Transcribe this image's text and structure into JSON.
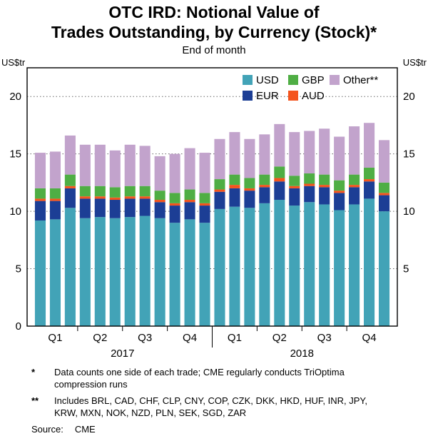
{
  "title_line1": "OTC IRD: Notional Value of",
  "title_line2": "Trades Outstanding, by Currency (Stock)*",
  "subtitle": "End of month",
  "y_unit_left": "US$tr",
  "y_unit_right": "US$tr",
  "footnotes": [
    {
      "marker": "*",
      "text": "Data counts one side of each trade; CME regularly conducts TriOptima compression runs"
    },
    {
      "marker": "**",
      "text": "Includes BRL, CAD, CHF, CLP, CNY, COP, CZK, DKK, HKD, HUF, INR, JPY, KRW, MXN, NOK, NZD, PLN, SEK, SGD, ZAR"
    }
  ],
  "source_label": "Source:",
  "source_value": "CME",
  "chart_data": {
    "type": "bar",
    "stacked": true,
    "title": "OTC IRD: Notional Value of Trades Outstanding, by Currency (Stock)*",
    "subtitle": "End of month",
    "ylabel": "US$tr",
    "ylim": [
      0,
      22.5
    ],
    "yticks": [
      0,
      5,
      10,
      15,
      20
    ],
    "grid": "dotted-horizontal",
    "legend_position": "top-right-inside",
    "legend_order": [
      "USD",
      "GBP",
      "Other**",
      "EUR",
      "AUD"
    ],
    "x_quarter_labels": [
      "Q1",
      "Q2",
      "Q3",
      "Q4",
      "Q1",
      "Q2",
      "Q3",
      "Q4"
    ],
    "x_year_labels": [
      "2017",
      "2018"
    ],
    "periods": [
      "2017-01",
      "2017-02",
      "2017-03",
      "2017-04",
      "2017-05",
      "2017-06",
      "2017-07",
      "2017-08",
      "2017-09",
      "2017-10",
      "2017-11",
      "2017-12",
      "2018-01",
      "2018-02",
      "2018-03",
      "2018-04",
      "2018-05",
      "2018-06",
      "2018-07",
      "2018-08",
      "2018-09",
      "2018-10",
      "2018-11",
      "2018-12"
    ],
    "series": [
      {
        "name": "USD",
        "color": "#42A3B7",
        "values": [
          9.2,
          9.3,
          10.3,
          9.4,
          9.5,
          9.4,
          9.5,
          9.6,
          9.4,
          9.0,
          9.3,
          9.0,
          10.2,
          10.4,
          10.3,
          10.7,
          11.0,
          10.5,
          10.8,
          10.6,
          10.1,
          10.6,
          11.1,
          10.0
        ]
      },
      {
        "name": "EUR",
        "color": "#1C3E95",
        "values": [
          1.7,
          1.6,
          1.7,
          1.7,
          1.6,
          1.6,
          1.6,
          1.5,
          1.4,
          1.5,
          1.5,
          1.5,
          1.5,
          1.6,
          1.5,
          1.4,
          1.6,
          1.5,
          1.4,
          1.5,
          1.5,
          1.5,
          1.5,
          1.4
        ]
      },
      {
        "name": "AUD",
        "color": "#F4541D",
        "values": [
          0.2,
          0.2,
          0.2,
          0.2,
          0.2,
          0.2,
          0.2,
          0.2,
          0.2,
          0.2,
          0.2,
          0.2,
          0.2,
          0.3,
          0.2,
          0.2,
          0.3,
          0.2,
          0.2,
          0.2,
          0.2,
          0.2,
          0.2,
          0.2
        ]
      },
      {
        "name": "GBP",
        "color": "#4FAE44",
        "values": [
          0.9,
          0.9,
          1.0,
          0.9,
          0.9,
          0.9,
          0.9,
          0.9,
          0.8,
          0.9,
          0.9,
          0.9,
          0.9,
          0.9,
          0.9,
          0.9,
          1.0,
          0.9,
          0.9,
          0.9,
          0.9,
          0.9,
          1.0,
          0.9
        ]
      },
      {
        "name": "Other**",
        "color": "#C2A3CC",
        "values": [
          3.1,
          3.2,
          3.4,
          3.6,
          3.6,
          3.2,
          3.6,
          3.5,
          3.0,
          3.4,
          3.6,
          3.5,
          3.5,
          3.7,
          3.4,
          3.5,
          3.7,
          3.8,
          3.7,
          4.0,
          3.8,
          4.2,
          3.9,
          3.7
        ]
      }
    ]
  }
}
